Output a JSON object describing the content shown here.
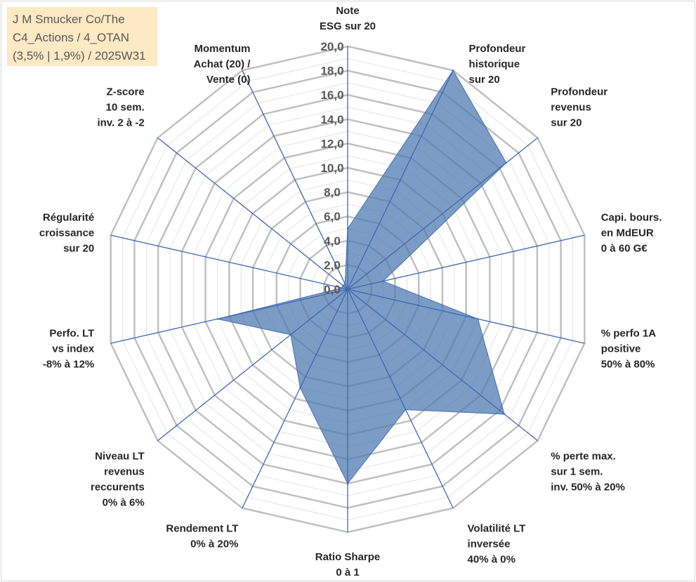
{
  "title_box": {
    "lines": [
      "J M Smucker Co/The",
      "C4_Actions / 4_OTAN",
      "(3,5% | 1,9%) / 2025W31"
    ]
  },
  "chart_data": {
    "type": "radar",
    "rmin": 0,
    "rmax": 20,
    "tick_step": 2,
    "tick_labels": [
      "0,0",
      "2,0",
      "4,0",
      "6,0",
      "8,0",
      "10,0",
      "12,0",
      "14,0",
      "16,0",
      "18,0",
      "20,0"
    ],
    "axes": [
      [
        "Note",
        "ESG sur 20"
      ],
      [
        "Profondeur",
        "historique",
        "sur 20"
      ],
      [
        "Profondeur",
        "revenus",
        "sur 20"
      ],
      [
        "Capi. bours.",
        "en MdEUR",
        "0 à 60 G€"
      ],
      [
        "% perfo 1A",
        "positive",
        "50% à 80%"
      ],
      [
        "% perte max.",
        "sur 1 sem.",
        "inv. 50% à 20%"
      ],
      [
        "Volatilité LT",
        "inversée",
        "40% à 0%"
      ],
      [
        "Ratio Sharpe",
        "0 à 1"
      ],
      [
        "Rendement LT",
        "0% à 20%"
      ],
      [
        "Niveau LT",
        "revenus",
        "reccurents",
        "0% à 6%"
      ],
      [
        "Perfo. LT",
        "vs index",
        "-8% à 12%"
      ],
      [
        "Régularité",
        "croissance",
        "sur 20"
      ],
      [
        "Z-score",
        "10 sem.",
        "inv. 2 à -2"
      ],
      [
        "Momentum",
        "Achat (20) /",
        "Vente (0)"
      ]
    ],
    "series": [
      {
        "values": [
          5.0,
          20.0,
          16.7,
          3.0,
          11.0,
          16.5,
          11.0,
          16.0,
          9.0,
          6.0,
          11.0,
          0.5,
          0.5,
          0.5
        ]
      }
    ],
    "colors": {
      "fill": "#4f7bb0",
      "fill_opacity": 0.75,
      "stroke": "#4a72b5",
      "spoke": "#3f68b3",
      "ring": "#c0c0c0",
      "inner_ring": "#e3e3e3"
    }
  }
}
